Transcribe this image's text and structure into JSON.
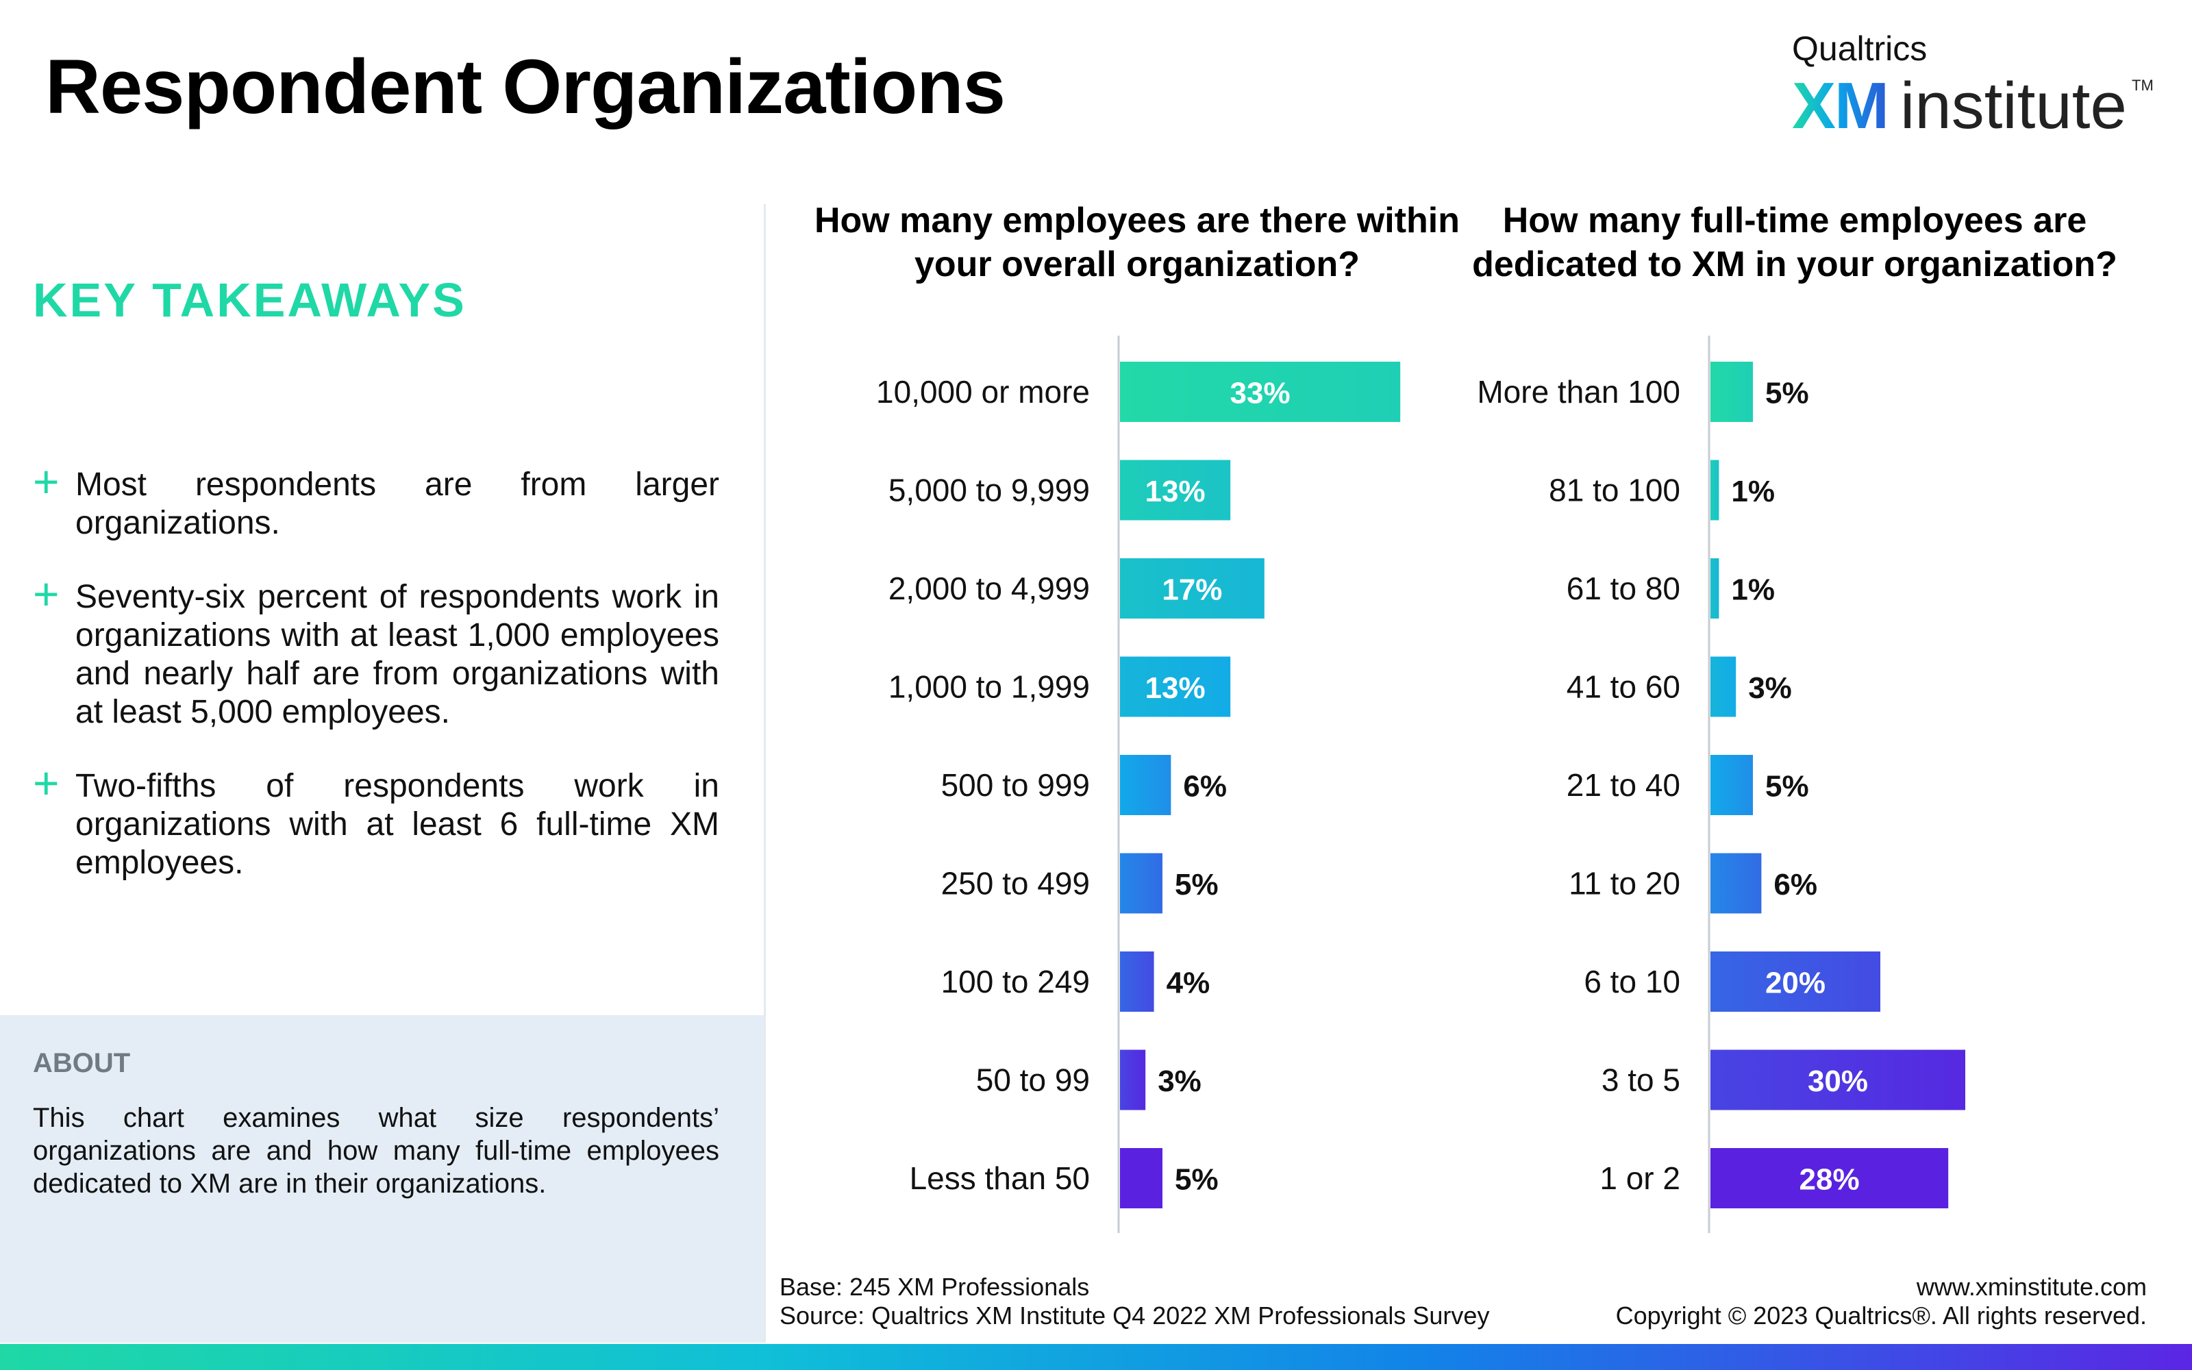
{
  "page": {
    "title": "Respondent Organizations"
  },
  "logo": {
    "brand": "Qualtrics",
    "xm": "XM",
    "institute": "institute",
    "tm": "TM"
  },
  "takeaways": {
    "heading": "KEY TAKEAWAYS",
    "items": [
      "Most respondents are from larger organizations.",
      "Seventy-six percent of respondents work in organizations with at least 1,000 employees and nearly half are from organizations with at least 5,000 employees.",
      "Two-fifths of respondents work in organizations with at least 6 full-time XM employees."
    ]
  },
  "about": {
    "heading": "ABOUT",
    "text": "This chart examines what size respondents’ organizations are and how many full-time employees dedicated to XM are in their organizations."
  },
  "footer": {
    "base": "Base: 245 XM Professionals",
    "source": "Source: Qualtrics XM Institute Q4 2022 XM Professionals Survey",
    "website": "www.xminstitute.com",
    "copyright": "Copyright © 2023 Qualtrics®. All rights reserved."
  },
  "colors": {
    "accent": "#1fd8a6",
    "bar_top": "#22d9a8",
    "bar_mid": "#12a9ea",
    "bar_bottom": "#5a22e0",
    "about_bg": "#e4edf5"
  },
  "chart_data": [
    {
      "type": "bar",
      "orientation": "horizontal",
      "title": "How many employees are there within your overall organization?",
      "categories": [
        "10,000 or more",
        "5,000 to 9,999",
        "2,000 to 4,999",
        "1,000 to 1,999",
        "500 to 999",
        "250 to 499",
        "100 to 249",
        "50 to 99",
        "Less than 50"
      ],
      "values": [
        33,
        13,
        17,
        13,
        6,
        5,
        4,
        3,
        5
      ],
      "labels": [
        "33%",
        "13%",
        "17%",
        "13%",
        "6%",
        "5%",
        "4%",
        "3%",
        "5%"
      ],
      "unit": "%",
      "xlim": [
        0,
        33
      ]
    },
    {
      "type": "bar",
      "orientation": "horizontal",
      "title": "How many full-time employees are dedicated to XM in your organization?",
      "categories": [
        "More than 100",
        "81 to 100",
        "61 to 80",
        "41 to 60",
        "21 to 40",
        "11 to 20",
        "6 to 10",
        "3 to 5",
        "1 or 2"
      ],
      "values": [
        5,
        1,
        1,
        3,
        5,
        6,
        20,
        30,
        28
      ],
      "labels": [
        "5%",
        "1%",
        "1%",
        "3%",
        "5%",
        "6%",
        "20%",
        "30%",
        "28%"
      ],
      "unit": "%",
      "xlim": [
        0,
        33
      ]
    }
  ]
}
